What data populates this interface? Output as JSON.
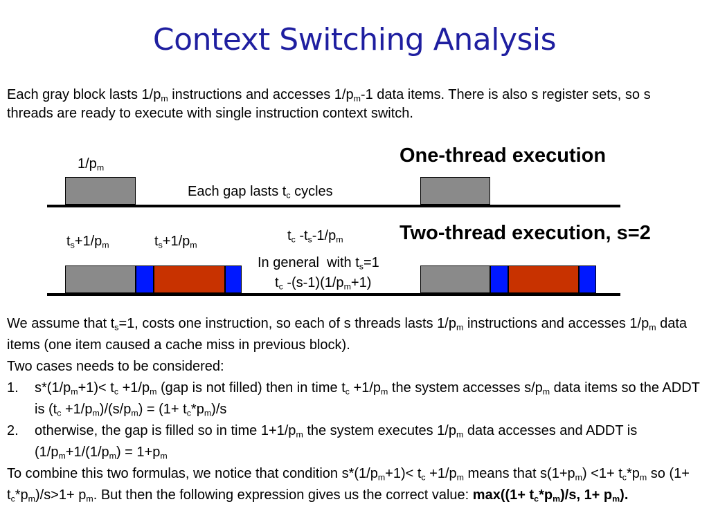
{
  "title": "Context Switching Analysis",
  "intro": "Each gray block lasts 1/p<sub>m</sub> instructions and accesses 1/p<sub>m</sub>-1 data items. There is also s register sets, so s threads are ready to execute with single instruction context switch.",
  "diagram": {
    "one_thread_heading": "One-thread execution",
    "two_thread_heading": "Two-thread execution, s=2",
    "label_block": "1/p<sub>m</sub>",
    "label_gap": "Each gap lasts t<sub>c</sub> cycles",
    "label_ts_1": "t<sub>s</sub>+1/p<sub>m</sub>",
    "label_ts_2": "t<sub>s</sub>+1/p<sub>m</sub>",
    "label_gap2": "t<sub>c</sub> -t<sub>s</sub>-1/p<sub>m</sub>",
    "label_general_1": "In general &nbsp;with t<sub>s</sub>=1",
    "label_general_2": "t<sub>c</sub> -(s-1)(1/p<sub>m</sub>+1)"
  },
  "body": {
    "para1": "We assume that t<sub>s</sub>=1, costs one instruction, so each of s threads lasts 1/p<sub>m</sub> instructions and accesses 1/p<sub>m</sub> data items (one item caused a cache miss in previous block).",
    "para2": "Two cases needs to be considered:",
    "item1_num": "1.",
    "item1": "s*(1/p<sub>m</sub>+1)&lt; t<sub>c</sub> +1/p<sub>m</sub> (gap is not filled) then in time t<sub>c</sub> +1/p<sub>m</sub> the system accesses s/p<sub>m</sub> data items so the ADDT is (t<sub>c</sub> +1/p<sub>m</sub>)/(s/p<sub>m</sub>) = (1+ t<sub>c</sub>*p<sub>m</sub>)/s",
    "item2_num": "2.",
    "item2": "otherwise, the gap is filled so in time 1+1/p<sub>m</sub> the system executes 1/p<sub>m</sub> data accesses and ADDT is (1/p<sub>m</sub>+1/(1/p<sub>m</sub>) = 1+p<sub>m</sub>",
    "para3": "To combine this two formulas, we notice that condition s*(1/p<sub>m</sub>+1)&lt; t<sub>c</sub> +1/p<sub>m</sub> means that s(1+p<sub>m</sub>) &lt;1+ t<sub>c</sub>*p<sub>m</sub> so (1+ t<sub>c</sub>*p<sub>m</sub>)/s&gt;1+ p<sub>m</sub>. But then the following expression gives us the correct value: <b>max((1+ t<sub>c</sub>*p<sub>m</sub>)/s, 1+ p<sub>m</sub>).</b>"
  },
  "colors": {
    "title": "#1f1fa0",
    "gray_block": "#8a8a8a",
    "blue_block": "#0018ff",
    "red_block": "#c83200"
  }
}
